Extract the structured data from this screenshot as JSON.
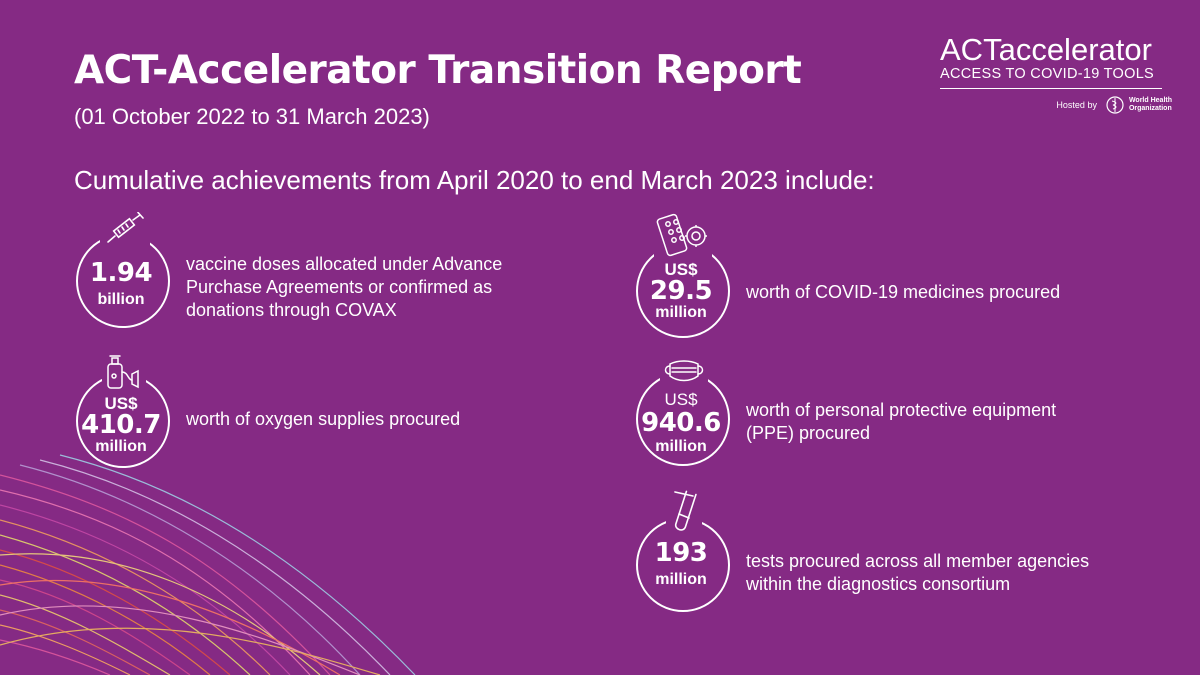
{
  "header": {
    "title": "ACT-Accelerator Transition Report",
    "subtitle": "(01 October 2022 to 31 March 2023)",
    "intro": "Cumulative achievements from April 2020 to end March 2023 include:"
  },
  "logo": {
    "act": "ACT",
    "accelerator": "accelerator",
    "tagline": "ACCESS TO COVID-19 TOOLS",
    "hosted_by": "Hosted by",
    "who_line1": "World Health",
    "who_line2": "Organization"
  },
  "stats": {
    "vaccines": {
      "icon": "syringe-icon",
      "value": "1.94",
      "unit": "billion",
      "description": "vaccine doses allocated under Advance Purchase Agreements or confirmed as donations through COVAX"
    },
    "oxygen": {
      "icon": "oxygen-cylinder-icon",
      "prefix": "US$",
      "value": "410.7",
      "unit": "million",
      "description": "worth of oxygen supplies procured"
    },
    "medicines": {
      "icon": "pills-icon",
      "prefix": "US$",
      "value": "29.5",
      "unit": "million",
      "description": "worth of COVID-19 medicines procured"
    },
    "ppe": {
      "icon": "face-mask-icon",
      "prefix": "US$",
      "value": "940.6",
      "unit": "million",
      "description": "worth of personal protective equipment (PPE) procured"
    },
    "tests": {
      "icon": "test-tube-icon",
      "value": "193",
      "unit": "million",
      "description": "tests procured across all member agencies within the diagnostics consortium"
    }
  },
  "colors": {
    "background": "#852A84",
    "text": "#FFFFFF"
  }
}
